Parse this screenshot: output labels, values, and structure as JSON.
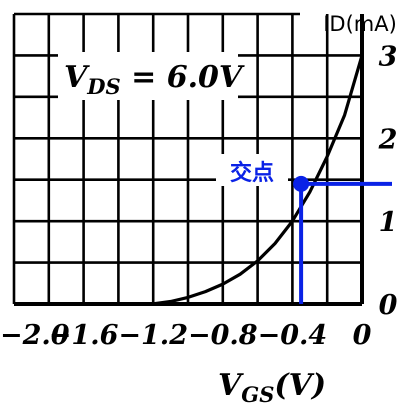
{
  "chart_data": {
    "type": "line",
    "title": "",
    "condition_label": {
      "main": "V",
      "sub": "DS",
      "rest": " = 6.0V"
    },
    "xlabel": {
      "main": "V",
      "sub": "GS",
      "rest": "(V)"
    },
    "ylabel": "ID(mA)",
    "xlim": [
      -2.0,
      0.0
    ],
    "ylim": [
      0,
      3.5
    ],
    "grid": true,
    "x_tick_labels": [
      "−2.0",
      "−1.6",
      "−1.2",
      "−0.8",
      "−0.4",
      "0"
    ],
    "x_tick_values": [
      -2.0,
      -1.6,
      -1.2,
      -0.8,
      -0.4,
      0.0
    ],
    "y_tick_labels": [
      "0",
      "1",
      "2",
      "3"
    ],
    "y_tick_values": [
      0,
      1,
      2,
      3
    ],
    "series": [
      {
        "color": "#000000",
        "x": [
          -1.25,
          -1.2,
          -1.1,
          -1.0,
          -0.9,
          -0.8,
          -0.7,
          -0.6,
          -0.5,
          -0.4,
          -0.3,
          -0.2,
          -0.1,
          0.0
        ],
        "y": [
          0.0,
          0.003,
          0.03,
          0.08,
          0.15,
          0.24,
          0.36,
          0.52,
          0.73,
          1.0,
          1.35,
          1.78,
          2.28,
          3.0
        ]
      }
    ],
    "intersection": {
      "label": "交点",
      "x": -0.35,
      "y": 1.45,
      "color": "#0a22e6"
    }
  }
}
